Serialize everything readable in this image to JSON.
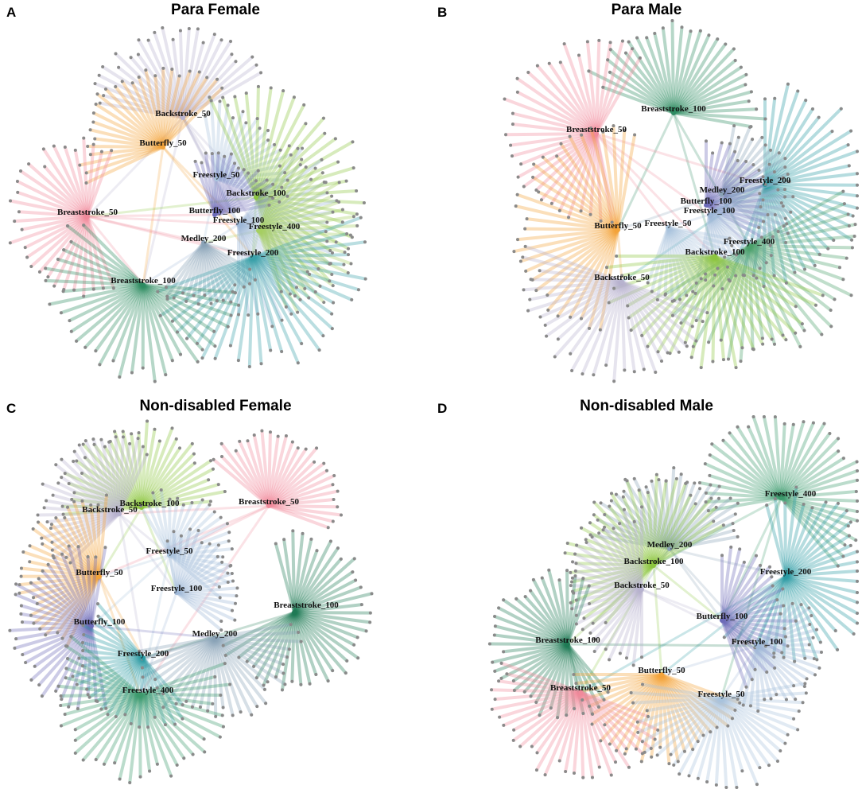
{
  "panels": [
    {
      "letter": "A",
      "title": "Para Female",
      "hubs": [
        {
          "label": "Backstroke_50",
          "color": "#b7b3cf"
        },
        {
          "label": "Butterfly_50",
          "color": "#f3a43a"
        },
        {
          "label": "Freestyle_50",
          "color": "#a9c4dd"
        },
        {
          "label": "Backstroke_100",
          "color": "#8cc63f"
        },
        {
          "label": "Breaststroke_50",
          "color": "#f08a9b"
        },
        {
          "label": "Butterfly_100",
          "color": "#6c6bb8"
        },
        {
          "label": "Freestyle_100",
          "color": "#9fb8d8"
        },
        {
          "label": "Freestyle_400",
          "color": "#a6cf62"
        },
        {
          "label": "Medley_200",
          "color": "#8aa2b6"
        },
        {
          "label": "Freestyle_200",
          "color": "#3aa0a8"
        },
        {
          "label": "Breaststroke_100",
          "color": "#2e8b62"
        }
      ]
    },
    {
      "letter": "B",
      "title": "Para Male",
      "hubs": [
        {
          "label": "Breaststroke_100",
          "color": "#2e8b62"
        },
        {
          "label": "Breaststroke_50",
          "color": "#f08a9b"
        },
        {
          "label": "Freestyle_200",
          "color": "#2a9aa3"
        },
        {
          "label": "Medley_200",
          "color": "#8aa2b6"
        },
        {
          "label": "Butterfly_100",
          "color": "#6c6bb8"
        },
        {
          "label": "Freestyle_100",
          "color": "#9fb8d8"
        },
        {
          "label": "Butterfly_50",
          "color": "#f3a43a"
        },
        {
          "label": "Freestyle_50",
          "color": "#a9c4dd"
        },
        {
          "label": "Freestyle_400",
          "color": "#4aa06a"
        },
        {
          "label": "Backstroke_100",
          "color": "#8cc63f"
        },
        {
          "label": "Backstroke_50",
          "color": "#b7b3cf"
        }
      ]
    },
    {
      "letter": "C",
      "title": "Non-disabled Female",
      "hubs": [
        {
          "label": "Backstroke_100",
          "color": "#8cc63f"
        },
        {
          "label": "Breaststroke_50",
          "color": "#f08a9b"
        },
        {
          "label": "Backstroke_50",
          "color": "#b7b3cf"
        },
        {
          "label": "Freestyle_50",
          "color": "#a9c4dd"
        },
        {
          "label": "Butterfly_50",
          "color": "#f3a43a"
        },
        {
          "label": "Freestyle_100",
          "color": "#9fb8d8"
        },
        {
          "label": "Butterfly_100",
          "color": "#6c6bb8"
        },
        {
          "label": "Breaststroke_100",
          "color": "#1f7a55"
        },
        {
          "label": "Medley_200",
          "color": "#8aa2b6"
        },
        {
          "label": "Freestyle_200",
          "color": "#2a9aa3"
        },
        {
          "label": "Freestyle_400",
          "color": "#3d9a6c"
        }
      ]
    },
    {
      "letter": "D",
      "title": "Non-disabled Male",
      "hubs": [
        {
          "label": "Freestyle_400",
          "color": "#3d9a6c"
        },
        {
          "label": "Medley_200",
          "color": "#8aa2b6"
        },
        {
          "label": "Backstroke_100",
          "color": "#8cc63f"
        },
        {
          "label": "Freestyle_200",
          "color": "#2a9aa3"
        },
        {
          "label": "Backstroke_50",
          "color": "#b7b3cf"
        },
        {
          "label": "Butterfly_100",
          "color": "#6c6bb8"
        },
        {
          "label": "Breaststroke_100",
          "color": "#1f7a55"
        },
        {
          "label": "Freestyle_100",
          "color": "#9fb8d8"
        },
        {
          "label": "Butterfly_50",
          "color": "#f3a43a"
        },
        {
          "label": "Breaststroke_50",
          "color": "#f08a9b"
        },
        {
          "label": "Freestyle_50",
          "color": "#a9c4dd"
        }
      ]
    }
  ]
}
